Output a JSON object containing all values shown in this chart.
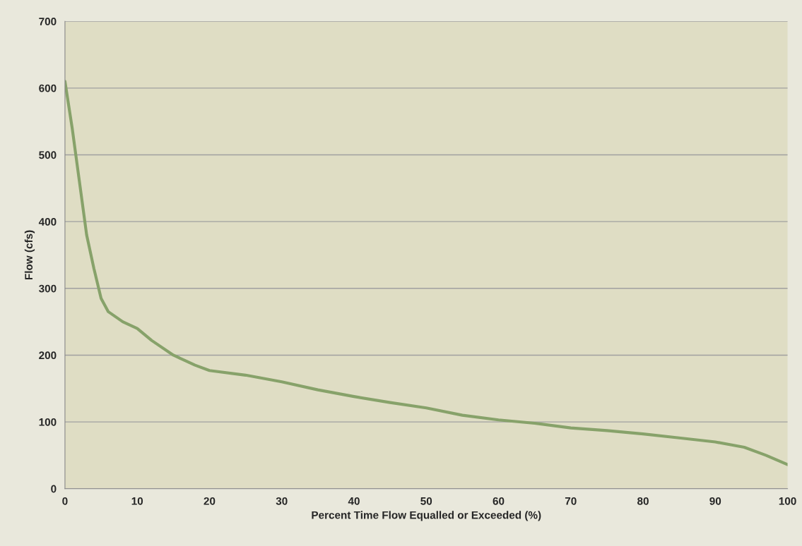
{
  "chart_data": {
    "type": "line",
    "xlabel": "Percent Time Flow Equalled or Exceeded (%)",
    "ylabel": "Flow (cfs)",
    "x": [
      0,
      1,
      2,
      3,
      4,
      5,
      6,
      8,
      10,
      12,
      15,
      18,
      20,
      25,
      30,
      35,
      40,
      45,
      50,
      55,
      60,
      65,
      70,
      75,
      80,
      85,
      90,
      94,
      97,
      100
    ],
    "series": [
      {
        "color": "#87a26a",
        "values": [
          610,
          540,
          460,
          380,
          330,
          285,
          265,
          250,
          240,
          222,
          200,
          185,
          177,
          170,
          160,
          148,
          138,
          129,
          121,
          110,
          103,
          98,
          91,
          87,
          82,
          76,
          70,
          62,
          50,
          36
        ]
      }
    ],
    "xlim": [
      0,
      100
    ],
    "xticks": [
      0,
      10,
      20,
      30,
      40,
      50,
      60,
      70,
      80,
      90,
      100
    ],
    "ylim": [
      0,
      700
    ],
    "yticks": [
      0,
      100,
      200,
      300,
      400,
      500,
      600,
      700
    ],
    "grid": "y",
    "marker": "none",
    "line_style": "solid"
  }
}
